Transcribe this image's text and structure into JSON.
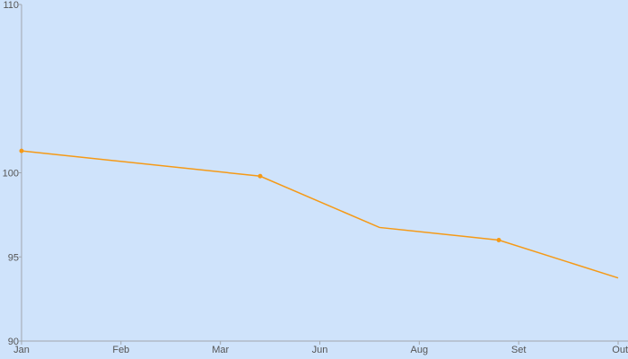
{
  "chart_data": {
    "type": "line",
    "title": "",
    "xlabel": "",
    "ylabel": "",
    "categories": [
      "Jan",
      "Feb",
      "Mar",
      "Jun",
      "Aug",
      "Set",
      "Out"
    ],
    "x": [
      0,
      2.4,
      3.6,
      4.8,
      6.0
    ],
    "y_ticks": [
      90,
      95,
      100,
      110
    ],
    "ylim": [
      90,
      110
    ],
    "grid": false,
    "legend": "none",
    "series": [
      {
        "values": [
          101.3,
          99.8,
          96.75,
          96.0,
          93.75
        ],
        "markers": [
          true,
          true,
          false,
          true,
          false
        ],
        "color": "#f59a17"
      }
    ]
  },
  "background_color": "#cfe3fb"
}
